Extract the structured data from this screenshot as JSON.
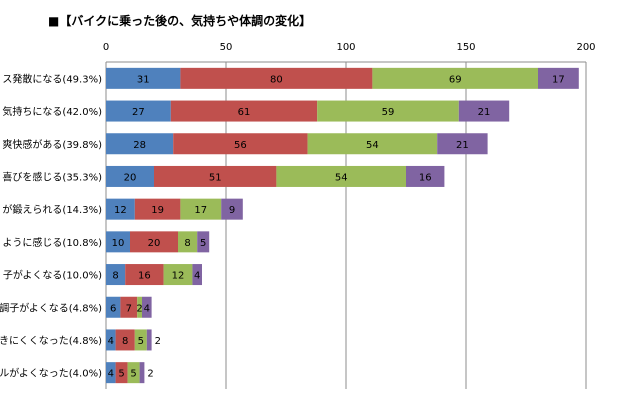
{
  "chart_data": {
    "type": "bar",
    "orientation": "horizontal",
    "stacked": true,
    "title": "■【バイクに乗った後の、気持ちや体調の変化】",
    "categories": [
      "ス発散になる(49.3%)",
      "気持ちになる(42.0%)",
      "爽快感がある(39.8%)",
      "喜びを感じる(35.3%)",
      "が鍛えられる(14.3%)",
      "ように感じる(10.8%)",
      "子がよくなる(10.0%)",
      "調子がよくなる(4.8%)",
      "きにくくなった(4.8%)",
      "ルがよくなった(4.0%)"
    ],
    "series": [
      {
        "values": [
          31,
          27,
          28,
          20,
          12,
          10,
          8,
          6,
          4,
          4
        ]
      },
      {
        "values": [
          80,
          61,
          56,
          51,
          19,
          20,
          16,
          7,
          8,
          5
        ]
      },
      {
        "values": [
          69,
          59,
          54,
          54,
          17,
          8,
          12,
          2,
          5,
          5
        ]
      },
      {
        "values": [
          17,
          21,
          21,
          16,
          9,
          5,
          4,
          4,
          2,
          2
        ]
      }
    ],
    "xlim": [
      0,
      200
    ],
    "xticks": [
      0,
      50,
      100,
      150,
      200
    ],
    "grid": true,
    "legend": "none",
    "colors": [
      "#4f81bd",
      "#c0504d",
      "#9bbb59",
      "#8064a2"
    ]
  }
}
